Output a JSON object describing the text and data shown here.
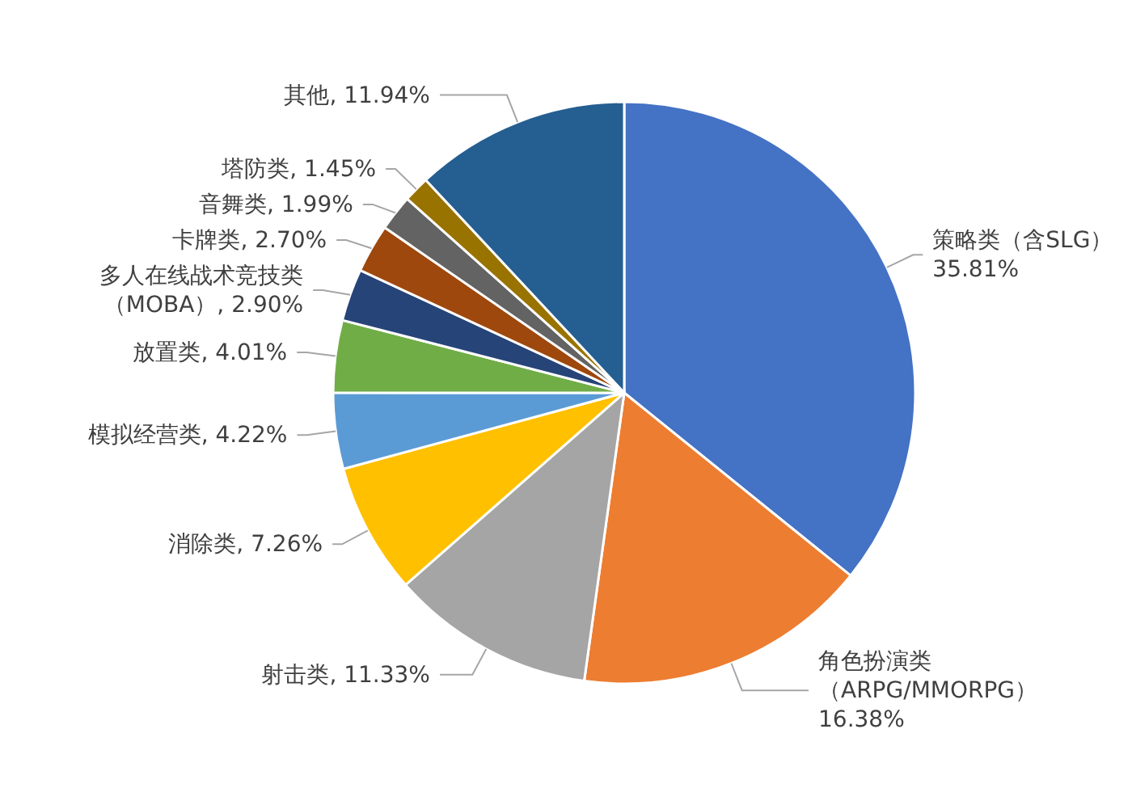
{
  "chart_data": {
    "type": "pie",
    "categories": [
      "策略类（含SLG）",
      "角色扮演类（ARPG/MMORPG）",
      "射击类",
      "消除类",
      "模拟经营类",
      "放置类",
      "多人在线战术竞技类（MOBA）",
      "卡牌类",
      "音舞类",
      "塔防类",
      "其他"
    ],
    "values": [
      35.81,
      16.38,
      11.33,
      7.26,
      4.22,
      4.01,
      2.9,
      2.7,
      1.99,
      1.45,
      11.94
    ],
    "value_labels": [
      "35.81%",
      "16.38%",
      "11.33%",
      "7.26%",
      "4.22%",
      "4.01%",
      "2.90%",
      "2.70%",
      "1.99%",
      "1.45%",
      "11.94%"
    ],
    "colors": [
      "#4472c4",
      "#ed7d31",
      "#a5a5a5",
      "#ffc000",
      "#5b9bd5",
      "#70ad47",
      "#264478",
      "#9e480e",
      "#636363",
      "#997300",
      "#255e91"
    ]
  }
}
